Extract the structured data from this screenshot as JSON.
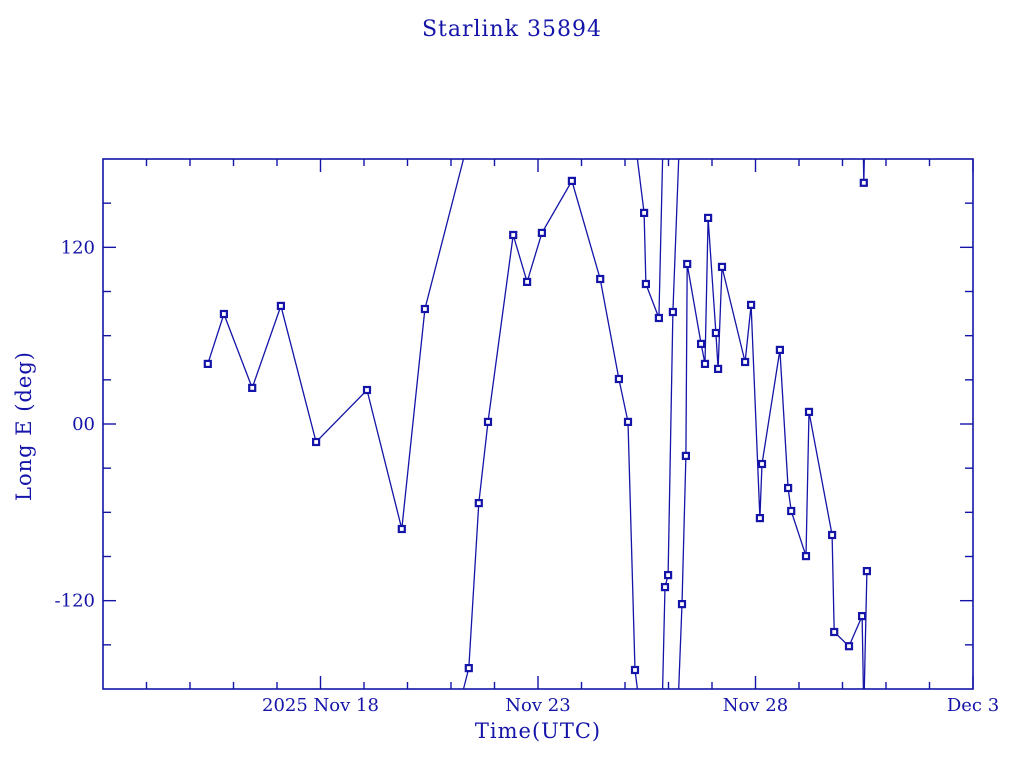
{
  "colors": {
    "plot_color": "#1414a8",
    "background": "#ffffff"
  },
  "chart_data": {
    "type": "line",
    "title": "Starlink 35894",
    "xlabel": "Time(UTC)",
    "ylabel": "Long E (deg)",
    "x_axis": {
      "days_span": 20,
      "minor_tick_step_days": 1,
      "major_ticks": [
        {
          "day": 5,
          "label": "2025 Nov 18"
        },
        {
          "day": 10,
          "label": "Nov 23"
        },
        {
          "day": 15,
          "label": "Nov 28"
        },
        {
          "day": 20,
          "label": "Dec  3"
        }
      ]
    },
    "y_axis": {
      "range": [
        -180,
        180
      ],
      "minor_tick_step": 30,
      "wrap_at": 180,
      "major_ticks": [
        {
          "value": 120,
          "label": "120"
        },
        {
          "value": 0,
          "label": "00"
        },
        {
          "value": -120,
          "label": "-120"
        }
      ]
    },
    "series": [
      {
        "name": "longitude-track",
        "marker": "open-square",
        "points_day_deg": [
          [
            2.41,
            40.8
          ],
          [
            2.78,
            74.7
          ],
          [
            3.43,
            24.5
          ],
          [
            4.09,
            80.2
          ],
          [
            4.9,
            -12.2
          ],
          [
            6.07,
            23.1
          ],
          [
            6.87,
            -71.3
          ],
          [
            7.4,
            78.1
          ],
          [
            8.41,
            -165.8
          ],
          [
            8.64,
            -53.7
          ],
          [
            8.85,
            1.4
          ],
          [
            9.43,
            128.4
          ],
          [
            9.75,
            96.5
          ],
          [
            10.09,
            129.8
          ],
          [
            10.78,
            165.1
          ],
          [
            11.43,
            98.5
          ],
          [
            11.86,
            30.6
          ],
          [
            12.07,
            1.4
          ],
          [
            12.23,
            -167.1
          ],
          [
            12.44,
            143.4
          ],
          [
            12.48,
            95.1
          ],
          [
            12.78,
            72.0
          ],
          [
            12.92,
            -110.8
          ],
          [
            12.99,
            -102.6
          ],
          [
            13.1,
            76.1
          ],
          [
            13.31,
            -122.3
          ],
          [
            13.4,
            -21.7
          ],
          [
            13.43,
            108.7
          ],
          [
            13.75,
            54.4
          ],
          [
            13.84,
            40.8
          ],
          [
            13.91,
            140.0
          ],
          [
            14.09,
            61.8
          ],
          [
            14.14,
            37.4
          ],
          [
            14.23,
            106.7
          ],
          [
            14.76,
            42.1
          ],
          [
            14.9,
            80.9
          ],
          [
            15.1,
            -63.9
          ],
          [
            15.15,
            -27.2
          ],
          [
            15.56,
            50.3
          ],
          [
            15.75,
            -43.5
          ],
          [
            15.82,
            -59.1
          ],
          [
            16.16,
            -89.7
          ],
          [
            16.23,
            8.2
          ],
          [
            16.76,
            -75.4
          ],
          [
            16.81,
            -141.3
          ],
          [
            17.15,
            -150.9
          ],
          [
            17.45,
            -130.5
          ],
          [
            17.49,
            163.8
          ],
          [
            17.56,
            -99.9
          ]
        ]
      }
    ]
  }
}
